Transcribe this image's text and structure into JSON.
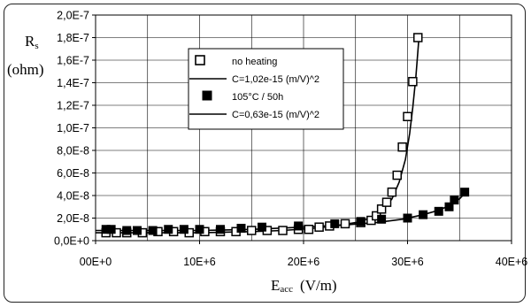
{
  "chart_data": {
    "type": "scatter",
    "title": "",
    "ylabel_main": "R",
    "ylabel_sub": "s",
    "ylabel_unit": "(ohm)",
    "xlabel_main": "E",
    "xlabel_sub": "acc",
    "xlabel_unit": "(V/m)",
    "xlim": [
      0,
      40000000
    ],
    "ylim": [
      0,
      2e-07
    ],
    "x_tick_labels": [
      "00E+0",
      "10E+6",
      "20E+6",
      "30E+6",
      "40E+6"
    ],
    "x_tick_values": [
      0,
      10000000,
      20000000,
      30000000,
      40000000
    ],
    "y_tick_labels": [
      "0,0E+0",
      "2,0E-8",
      "4,0E-8",
      "6,0E-8",
      "8,0E-8",
      "1,0E-7",
      "1,2E-7",
      "1,4E-7",
      "1,6E-7",
      "1,8E-7",
      "2,0E-7"
    ],
    "y_tick_values": [
      0,
      2e-08,
      4e-08,
      6e-08,
      8e-08,
      1e-07,
      1.2e-07,
      1.4e-07,
      1.6e-07,
      1.8e-07,
      2e-07
    ],
    "x_gridlines": [
      0,
      5000000,
      10000000,
      15000000,
      20000000,
      25000000,
      30000000,
      35000000,
      40000000
    ],
    "grid": true,
    "legend_position": "upper-center",
    "series": [
      {
        "name": "no heating",
        "marker": "open-square",
        "x": [
          1000000,
          2000000,
          3000000,
          4500000,
          6000000,
          7500000,
          9000000,
          10500000,
          12000000,
          13500000,
          15000000,
          16500000,
          18000000,
          19500000,
          20500000,
          21500000,
          22500000,
          24000000,
          25500000,
          26500000,
          27000000,
          27500000,
          28000000,
          28500000,
          29000000,
          29500000,
          30000000,
          30500000,
          31000000
        ],
        "values": [
          7e-09,
          7e-09,
          7e-09,
          7e-09,
          8e-09,
          8e-09,
          7e-09,
          8e-09,
          8e-09,
          8e-09,
          9e-09,
          9e-09,
          9e-09,
          1e-08,
          1e-08,
          1.2e-08,
          1.3e-08,
          1.5e-08,
          1.6e-08,
          1.8e-08,
          2.2e-08,
          2.8e-08,
          3.4e-08,
          4.3e-08,
          5.8e-08,
          8.3e-08,
          1.1e-07,
          1.41e-07,
          1.8e-07
        ]
      },
      {
        "name": "C=1,02e-15 (m/V)^2",
        "line": "solid",
        "x": [
          0,
          5000000,
          10000000,
          15000000,
          18000000,
          21000000,
          23000000,
          25000000,
          26500000,
          27500000,
          28500000,
          29200000,
          29800000,
          30200000,
          30500000,
          30800000,
          31100000
        ],
        "values": [
          7e-09,
          7e-09,
          7e-09,
          8e-09,
          9e-09,
          1.1e-08,
          1.3e-08,
          1.6e-08,
          2e-08,
          2.6e-08,
          3.7e-08,
          5.2e-08,
          7.2e-08,
          9.5e-08,
          1.18e-07,
          1.45e-07,
          1.8e-07
        ]
      },
      {
        "name": "105°C / 50h",
        "marker": "filled-square",
        "x": [
          1000000,
          1500000,
          3000000,
          4000000,
          5500000,
          7000000,
          8500000,
          10000000,
          12000000,
          14000000,
          16000000,
          19500000,
          23000000,
          25500000,
          27500000,
          30000000,
          31500000,
          33000000,
          34000000,
          34500000,
          35500000
        ],
        "values": [
          1e-08,
          1e-08,
          9e-09,
          9e-09,
          9e-09,
          1e-08,
          1e-08,
          1e-08,
          1e-08,
          1.1e-08,
          1.2e-08,
          1.3e-08,
          1.5e-08,
          1.7e-08,
          1.9e-08,
          2e-08,
          2.3e-08,
          2.6e-08,
          3e-08,
          3.6e-08,
          4.3e-08
        ]
      },
      {
        "name": "C=0,63e-15 (m/V)^2",
        "line": "solid",
        "x": [
          0,
          5000000,
          10000000,
          15000000,
          20000000,
          24000000,
          27000000,
          29500000,
          31500000,
          33000000,
          34000000,
          35000000,
          35600000
        ],
        "values": [
          9e-09,
          9e-09,
          9e-09,
          1e-08,
          1.2e-08,
          1.4e-08,
          1.6e-08,
          1.9e-08,
          2.3e-08,
          2.7e-08,
          3.1e-08,
          3.7e-08,
          4.3e-08
        ]
      }
    ]
  }
}
